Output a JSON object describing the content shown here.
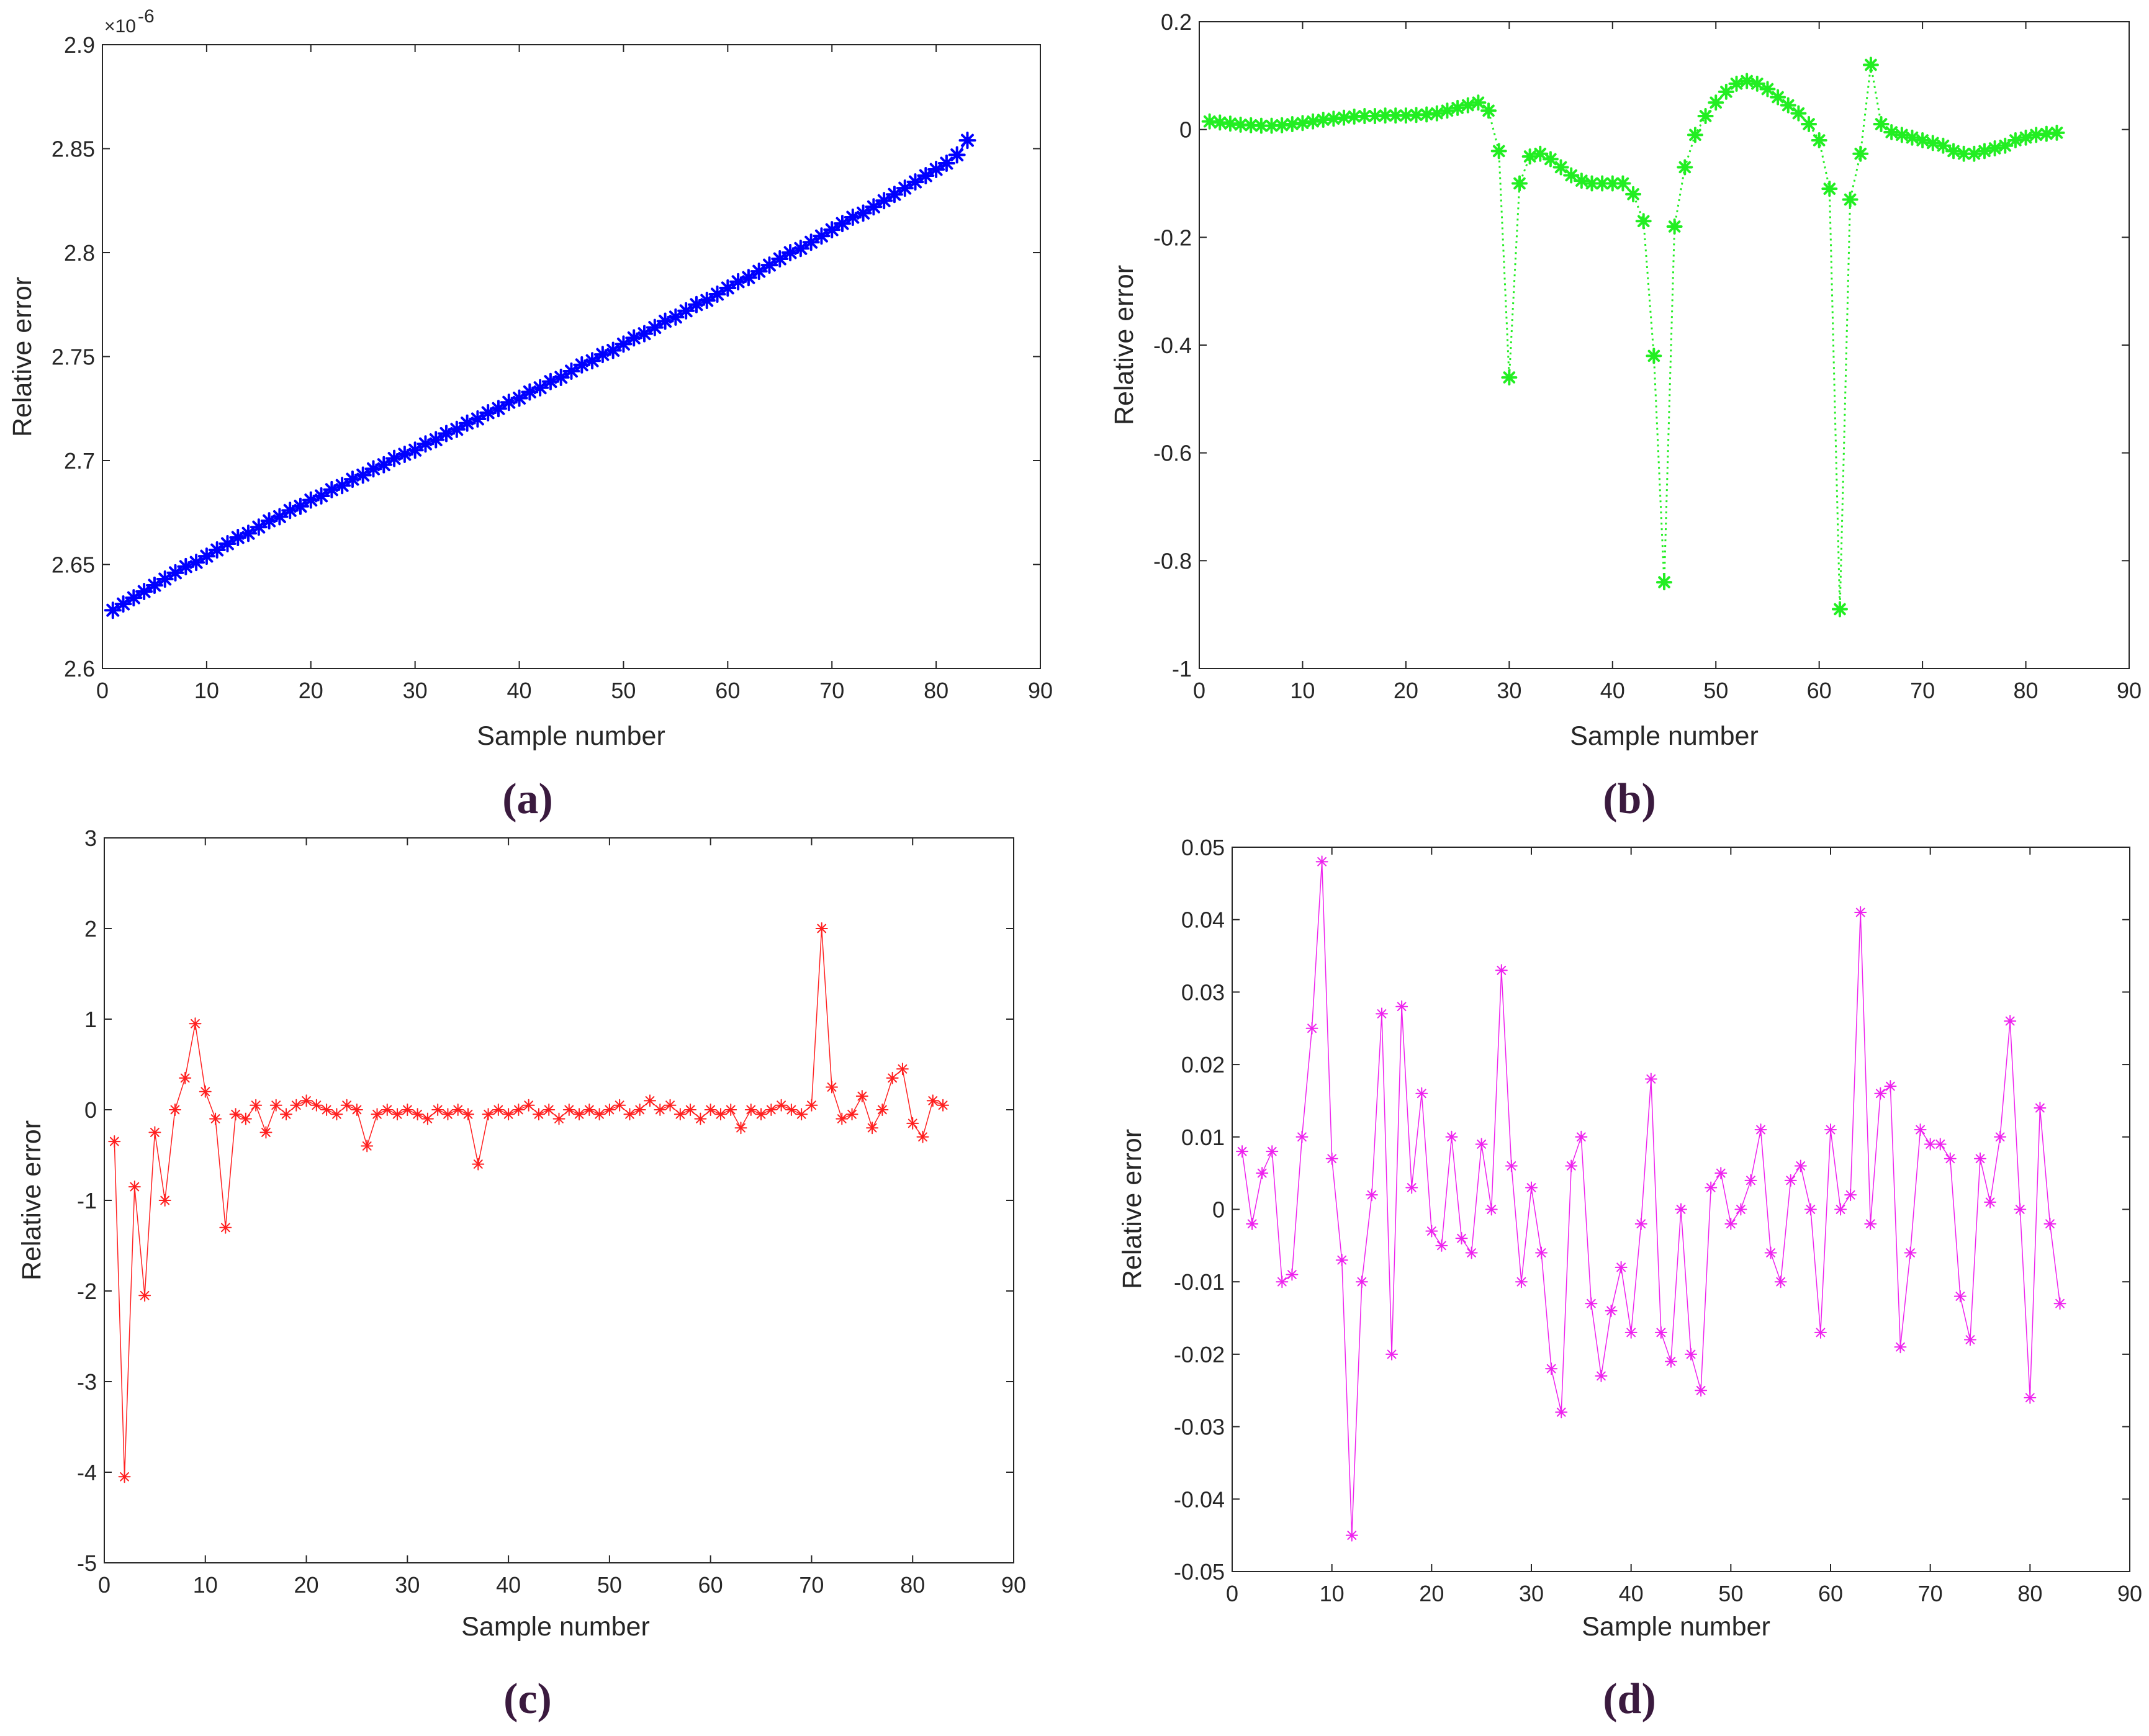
{
  "chart_data": [
    {
      "id": "a",
      "type": "line",
      "caption": "(a)",
      "xlabel": "Sample number",
      "ylabel": "Relative error",
      "xlim": [
        0,
        90
      ],
      "ylim": [
        2.6,
        2.9
      ],
      "xticks": [
        0,
        10,
        20,
        30,
        40,
        50,
        60,
        70,
        80,
        90
      ],
      "yticks": [
        2.6,
        2.65,
        2.7,
        2.75,
        2.8,
        2.85,
        2.9
      ],
      "ytick_labels": [
        "2.6",
        "2.65",
        "2.7",
        "2.75",
        "2.8",
        "2.85",
        "2.9"
      ],
      "y_multiplier": "×10",
      "y_multiplier_exponent": "-6",
      "line_style": "solid",
      "marker": "*",
      "color": "#0000ff",
      "series": [
        {
          "name": "Relative error",
          "x": [
            1,
            2,
            3,
            4,
            5,
            6,
            7,
            8,
            9,
            10,
            11,
            12,
            13,
            14,
            15,
            16,
            17,
            18,
            19,
            20,
            21,
            22,
            23,
            24,
            25,
            26,
            27,
            28,
            29,
            30,
            31,
            32,
            33,
            34,
            35,
            36,
            37,
            38,
            39,
            40,
            41,
            42,
            43,
            44,
            45,
            46,
            47,
            48,
            49,
            50,
            51,
            52,
            53,
            54,
            55,
            56,
            57,
            58,
            59,
            60,
            61,
            62,
            63,
            64,
            65,
            66,
            67,
            68,
            69,
            70,
            71,
            72,
            73,
            74,
            75,
            76,
            77,
            78,
            79,
            80,
            81,
            82,
            83
          ],
          "y": [
            2.628,
            2.631,
            2.634,
            2.637,
            2.64,
            2.643,
            2.646,
            2.649,
            2.651,
            2.654,
            2.657,
            2.66,
            2.663,
            2.665,
            2.668,
            2.671,
            2.673,
            2.676,
            2.678,
            2.681,
            2.683,
            2.686,
            2.688,
            2.691,
            2.693,
            2.696,
            2.698,
            2.701,
            2.703,
            2.705,
            2.708,
            2.71,
            2.713,
            2.715,
            2.718,
            2.72,
            2.723,
            2.725,
            2.728,
            2.73,
            2.733,
            2.735,
            2.738,
            2.74,
            2.743,
            2.746,
            2.748,
            2.751,
            2.753,
            2.756,
            2.759,
            2.761,
            2.764,
            2.767,
            2.769,
            2.772,
            2.775,
            2.777,
            2.78,
            2.783,
            2.786,
            2.788,
            2.791,
            2.794,
            2.797,
            2.8,
            2.802,
            2.805,
            2.808,
            2.811,
            2.814,
            2.817,
            2.819,
            2.822,
            2.825,
            2.828,
            2.831,
            2.834,
            2.837,
            2.84,
            2.843,
            2.847,
            2.854
          ]
        }
      ]
    },
    {
      "id": "b",
      "type": "line",
      "caption": "(b)",
      "xlabel": "Sample number",
      "ylabel": "Relative error",
      "xlim": [
        0,
        90
      ],
      "ylim": [
        -1,
        0.2
      ],
      "xticks": [
        0,
        10,
        20,
        30,
        40,
        50,
        60,
        70,
        80,
        90
      ],
      "yticks": [
        -1,
        -0.8,
        -0.6,
        -0.4,
        -0.2,
        0,
        0.2
      ],
      "ytick_labels": [
        "-1",
        "-0.8",
        "-0.6",
        "-0.4",
        "-0.2",
        "0",
        "0.2"
      ],
      "line_style": "dotted",
      "marker": "*",
      "color": "#22ee22",
      "series": [
        {
          "name": "Relative error",
          "x": [
            1,
            2,
            3,
            4,
            5,
            6,
            7,
            8,
            9,
            10,
            11,
            12,
            13,
            14,
            15,
            16,
            17,
            18,
            19,
            20,
            21,
            22,
            23,
            24,
            25,
            26,
            27,
            28,
            29,
            30,
            31,
            32,
            33,
            34,
            35,
            36,
            37,
            38,
            39,
            40,
            41,
            42,
            43,
            44,
            45,
            46,
            47,
            48,
            49,
            50,
            51,
            52,
            53,
            54,
            55,
            56,
            57,
            58,
            59,
            60,
            61,
            62,
            63,
            64,
            65,
            66,
            67,
            68,
            69,
            70,
            71,
            72,
            73,
            74,
            75,
            76,
            77,
            78,
            79,
            80,
            81,
            82,
            83
          ],
          "y": [
            0.015,
            0.013,
            0.011,
            0.009,
            0.008,
            0.007,
            0.007,
            0.008,
            0.01,
            0.012,
            0.015,
            0.018,
            0.02,
            0.022,
            0.024,
            0.025,
            0.025,
            0.026,
            0.026,
            0.026,
            0.027,
            0.028,
            0.03,
            0.035,
            0.04,
            0.045,
            0.05,
            0.035,
            -0.04,
            -0.46,
            -0.1,
            -0.05,
            -0.045,
            -0.055,
            -0.07,
            -0.085,
            -0.095,
            -0.1,
            -0.1,
            -0.1,
            -0.1,
            -0.12,
            -0.17,
            -0.42,
            -0.84,
            -0.18,
            -0.07,
            -0.01,
            0.025,
            0.05,
            0.07,
            0.085,
            0.09,
            0.085,
            0.075,
            0.06,
            0.045,
            0.03,
            0.01,
            -0.02,
            -0.11,
            -0.89,
            -0.13,
            -0.045,
            0.12,
            0.01,
            -0.005,
            -0.01,
            -0.015,
            -0.02,
            -0.025,
            -0.03,
            -0.04,
            -0.045,
            -0.045,
            -0.04,
            -0.035,
            -0.03,
            -0.02,
            -0.015,
            -0.01,
            -0.008,
            -0.006
          ]
        }
      ]
    },
    {
      "id": "c",
      "type": "line",
      "caption": "(c)",
      "xlabel": "Sample number",
      "ylabel": "Relative error",
      "xlim": [
        0,
        90
      ],
      "ylim": [
        -5,
        3
      ],
      "xticks": [
        0,
        10,
        20,
        30,
        40,
        50,
        60,
        70,
        80,
        90
      ],
      "yticks": [
        -5,
        -4,
        -3,
        -2,
        -1,
        0,
        1,
        2,
        3
      ],
      "ytick_labels": [
        "-5",
        "-4",
        "-3",
        "-2",
        "-1",
        "0",
        "1",
        "2",
        "3"
      ],
      "line_style": "solid",
      "marker": "*",
      "color": "#ff2020",
      "series": [
        {
          "name": "Relative error",
          "x": [
            1,
            2,
            3,
            4,
            5,
            6,
            7,
            8,
            9,
            10,
            11,
            12,
            13,
            14,
            15,
            16,
            17,
            18,
            19,
            20,
            21,
            22,
            23,
            24,
            25,
            26,
            27,
            28,
            29,
            30,
            31,
            32,
            33,
            34,
            35,
            36,
            37,
            38,
            39,
            40,
            41,
            42,
            43,
            44,
            45,
            46,
            47,
            48,
            49,
            50,
            51,
            52,
            53,
            54,
            55,
            56,
            57,
            58,
            59,
            60,
            61,
            62,
            63,
            64,
            65,
            66,
            67,
            68,
            69,
            70,
            71,
            72,
            73,
            74,
            75,
            76,
            77,
            78,
            79,
            80,
            81,
            82,
            83
          ],
          "y": [
            -0.35,
            -4.05,
            -0.85,
            -2.05,
            -0.25,
            -1.0,
            0.0,
            0.35,
            0.95,
            0.2,
            -0.1,
            -1.3,
            -0.05,
            -0.1,
            0.05,
            -0.25,
            0.05,
            -0.05,
            0.05,
            0.1,
            0.05,
            0.0,
            -0.05,
            0.05,
            0.0,
            -0.4,
            -0.05,
            0.0,
            -0.05,
            0.0,
            -0.05,
            -0.1,
            0.0,
            -0.05,
            0.0,
            -0.05,
            -0.6,
            -0.05,
            0.0,
            -0.05,
            0.0,
            0.05,
            -0.05,
            0.0,
            -0.1,
            0.0,
            -0.05,
            0.0,
            -0.05,
            0.0,
            0.05,
            -0.05,
            0.0,
            0.1,
            0.0,
            0.05,
            -0.05,
            0.0,
            -0.1,
            0.0,
            -0.05,
            0.0,
            -0.2,
            0.0,
            -0.05,
            0.0,
            0.05,
            0.0,
            -0.05,
            0.05,
            2.0,
            0.25,
            -0.1,
            -0.05,
            0.15,
            -0.2,
            0.0,
            0.35,
            0.45,
            -0.15,
            -0.3,
            0.1,
            0.05
          ]
        }
      ]
    },
    {
      "id": "d",
      "type": "line",
      "caption": "(d)",
      "xlabel": "Sample number",
      "ylabel": "Relative error",
      "xlim": [
        0,
        90
      ],
      "ylim": [
        -0.05,
        0.05
      ],
      "xticks": [
        0,
        10,
        20,
        30,
        40,
        50,
        60,
        70,
        80,
        90
      ],
      "yticks": [
        -0.05,
        -0.04,
        -0.03,
        -0.02,
        -0.01,
        0,
        0.01,
        0.02,
        0.03,
        0.04,
        0.05
      ],
      "ytick_labels": [
        "-0.05",
        "-0.04",
        "-0.03",
        "-0.02",
        "-0.01",
        "0",
        "0.01",
        "0.02",
        "0.03",
        "0.04",
        "0.05"
      ],
      "line_style": "solid",
      "marker": "*",
      "color": "#ee22ee",
      "series": [
        {
          "name": "Relative error",
          "x": [
            1,
            2,
            3,
            4,
            5,
            6,
            7,
            8,
            9,
            10,
            11,
            12,
            13,
            14,
            15,
            16,
            17,
            18,
            19,
            20,
            21,
            22,
            23,
            24,
            25,
            26,
            27,
            28,
            29,
            30,
            31,
            32,
            33,
            34,
            35,
            36,
            37,
            38,
            39,
            40,
            41,
            42,
            43,
            44,
            45,
            46,
            47,
            48,
            49,
            50,
            51,
            52,
            53,
            54,
            55,
            56,
            57,
            58,
            59,
            60,
            61,
            62,
            63,
            64,
            65,
            66,
            67,
            68,
            69,
            70,
            71,
            72,
            73,
            74,
            75,
            76,
            77,
            78,
            79,
            80,
            81,
            82,
            83
          ],
          "y": [
            0.008,
            -0.002,
            0.005,
            0.008,
            -0.01,
            -0.009,
            0.01,
            0.025,
            0.048,
            0.007,
            -0.007,
            -0.045,
            -0.01,
            0.002,
            0.027,
            -0.02,
            0.028,
            0.003,
            0.016,
            -0.003,
            -0.005,
            0.01,
            -0.004,
            -0.006,
            0.009,
            0.0,
            0.033,
            0.006,
            -0.01,
            0.003,
            -0.006,
            -0.022,
            -0.028,
            0.006,
            0.01,
            -0.013,
            -0.023,
            -0.014,
            -0.008,
            -0.017,
            -0.002,
            0.018,
            -0.017,
            -0.021,
            0.0,
            -0.02,
            -0.025,
            0.003,
            0.005,
            -0.002,
            0.0,
            0.004,
            0.011,
            -0.006,
            -0.01,
            0.004,
            0.006,
            0.0,
            -0.017,
            0.011,
            0.0,
            0.002,
            0.041,
            -0.002,
            0.016,
            0.017,
            -0.019,
            -0.006,
            0.011,
            0.009,
            0.009,
            0.007,
            -0.012,
            -0.018,
            0.007,
            0.001,
            0.01,
            0.026,
            0.0,
            -0.026,
            0.014,
            -0.002,
            -0.013
          ]
        }
      ]
    }
  ]
}
